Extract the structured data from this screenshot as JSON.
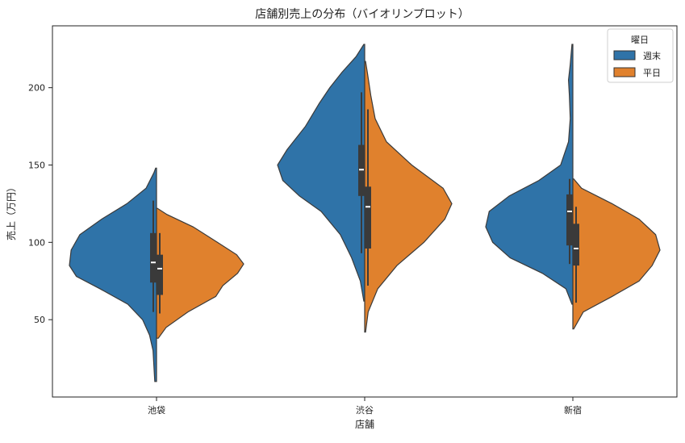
{
  "chart_data": {
    "type": "violin",
    "title": "店舗別売上の分布（バイオリンプロット）",
    "xlabel": "店舗",
    "ylabel": "売上（万円）",
    "categories": [
      "池袋",
      "渋谷",
      "新宿"
    ],
    "ylim": [
      0,
      240
    ],
    "yticks": [
      50,
      100,
      150,
      200
    ],
    "grid": false,
    "legend": {
      "title": "曜日",
      "placement": "top-right"
    },
    "series": [
      {
        "name": "週末",
        "color": "#2f73a8",
        "side": "left",
        "groups": [
          {
            "category": "池袋",
            "min": 10,
            "max": 148,
            "q1": 74,
            "median": 87,
            "q3": 106,
            "whisker_low": 55,
            "whisker_high": 127,
            "density": [
              [
                10,
                0.02
              ],
              [
                20,
                0.03
              ],
              [
                30,
                0.04
              ],
              [
                40,
                0.08
              ],
              [
                50,
                0.16
              ],
              [
                60,
                0.33
              ],
              [
                70,
                0.65
              ],
              [
                78,
                0.92
              ],
              [
                85,
                1.0
              ],
              [
                95,
                0.98
              ],
              [
                105,
                0.88
              ],
              [
                115,
                0.63
              ],
              [
                125,
                0.34
              ],
              [
                135,
                0.12
              ],
              [
                145,
                0.03
              ],
              [
                148,
                0.01
              ]
            ]
          },
          {
            "category": "渋谷",
            "min": 62,
            "max": 228,
            "q1": 130,
            "median": 147,
            "q3": 163,
            "whisker_low": 93,
            "whisker_high": 197,
            "density": [
              [
                62,
                0.01
              ],
              [
                75,
                0.05
              ],
              [
                90,
                0.15
              ],
              [
                105,
                0.28
              ],
              [
                120,
                0.5
              ],
              [
                130,
                0.75
              ],
              [
                140,
                0.94
              ],
              [
                150,
                1.0
              ],
              [
                160,
                0.89
              ],
              [
                175,
                0.68
              ],
              [
                190,
                0.52
              ],
              [
                200,
                0.4
              ],
              [
                210,
                0.26
              ],
              [
                220,
                0.1
              ],
              [
                228,
                0.01
              ]
            ]
          },
          {
            "category": "新宿",
            "min": 60,
            "max": 228,
            "q1": 98,
            "median": 120,
            "q3": 131,
            "whisker_low": 86,
            "whisker_high": 141,
            "density": [
              [
                60,
                0.01
              ],
              [
                70,
                0.08
              ],
              [
                80,
                0.35
              ],
              [
                90,
                0.72
              ],
              [
                100,
                0.92
              ],
              [
                110,
                1.0
              ],
              [
                120,
                0.96
              ],
              [
                130,
                0.73
              ],
              [
                140,
                0.39
              ],
              [
                150,
                0.14
              ],
              [
                165,
                0.05
              ],
              [
                180,
                0.03
              ],
              [
                195,
                0.04
              ],
              [
                205,
                0.05
              ],
              [
                215,
                0.03
              ],
              [
                228,
                0.01
              ]
            ]
          }
        ]
      },
      {
        "name": "平日",
        "color": "#e0812d",
        "side": "right",
        "groups": [
          {
            "category": "池袋",
            "min": 38,
            "max": 122,
            "q1": 66,
            "median": 83,
            "q3": 92,
            "whisker_low": 54,
            "whisker_high": 106,
            "density": [
              [
                38,
                0.02
              ],
              [
                45,
                0.11
              ],
              [
                55,
                0.36
              ],
              [
                65,
                0.68
              ],
              [
                72,
                0.76
              ],
              [
                80,
                0.93
              ],
              [
                86,
                1.0
              ],
              [
                92,
                0.92
              ],
              [
                100,
                0.7
              ],
              [
                110,
                0.42
              ],
              [
                118,
                0.12
              ],
              [
                122,
                0.01
              ]
            ]
          },
          {
            "category": "渋谷",
            "min": 42,
            "max": 217,
            "q1": 96,
            "median": 123,
            "q3": 136,
            "whisker_low": 72,
            "whisker_high": 186,
            "density": [
              [
                42,
                0.01
              ],
              [
                55,
                0.04
              ],
              [
                70,
                0.15
              ],
              [
                85,
                0.37
              ],
              [
                100,
                0.68
              ],
              [
                115,
                0.92
              ],
              [
                125,
                1.0
              ],
              [
                135,
                0.9
              ],
              [
                150,
                0.54
              ],
              [
                165,
                0.25
              ],
              [
                180,
                0.12
              ],
              [
                195,
                0.07
              ],
              [
                210,
                0.03
              ],
              [
                217,
                0.01
              ]
            ]
          },
          {
            "category": "新宿",
            "min": 44,
            "max": 141,
            "q1": 85,
            "median": 96,
            "q3": 112,
            "whisker_low": 61,
            "whisker_high": 123,
            "density": [
              [
                44,
                0.01
              ],
              [
                55,
                0.12
              ],
              [
                65,
                0.45
              ],
              [
                75,
                0.76
              ],
              [
                85,
                0.91
              ],
              [
                95,
                1.0
              ],
              [
                105,
                0.95
              ],
              [
                115,
                0.76
              ],
              [
                125,
                0.45
              ],
              [
                135,
                0.1
              ],
              [
                141,
                0.01
              ]
            ]
          }
        ]
      }
    ]
  }
}
